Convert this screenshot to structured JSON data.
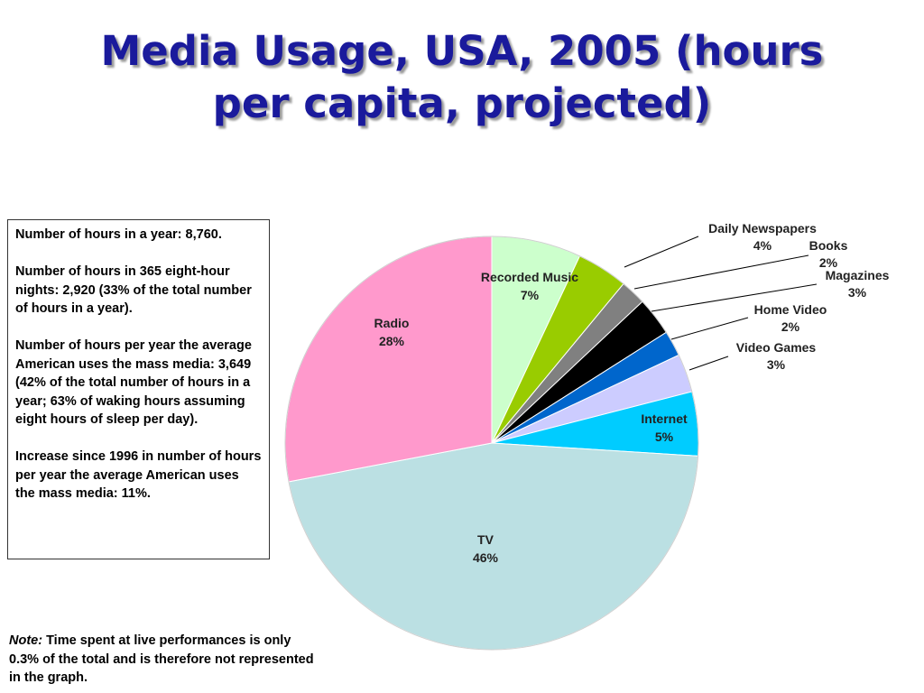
{
  "title_line1": "Media Usage, USA, 2005 (hours",
  "title_line2": "per capita, projected)",
  "info_box": {
    "p1": "Number of hours in a year: 8,760.",
    "p2": "Number of hours in 365 eight-hour nights: 2,920 (33% of the total number of hours in a year).",
    "p3": "Number of hours per year the average American uses the mass media: 3,649 (42% of the total number of hours in a year; 63% of waking hours assuming eight hours of sleep per day).",
    "p4": "Increase since 1996 in number of hours per year the average American uses the mass media: 11%."
  },
  "note": {
    "label": "Note:",
    "text": " Time spent at live performances is only 0.3% of the total and is therefore not represented in the graph."
  },
  "chart_data": {
    "type": "pie",
    "title": "Media Usage, USA, 2005 (hours per capita, projected)",
    "start": "12 o'clock",
    "direction": "clockwise",
    "slices": [
      {
        "name": "Recorded Music",
        "value": 7,
        "label": "7%",
        "color": "#ccffcc",
        "label_pos": "inside"
      },
      {
        "name": "Daily Newspapers",
        "value": 4,
        "label": "4%",
        "color": "#99cc00",
        "label_pos": "outside"
      },
      {
        "name": "Books",
        "value": 2,
        "label": "2%",
        "color": "#808080",
        "label_pos": "outside"
      },
      {
        "name": "Magazines",
        "value": 3,
        "label": "3%",
        "color": "#000000",
        "label_pos": "outside"
      },
      {
        "name": "Home Video",
        "value": 2,
        "label": "2%",
        "color": "#0066cc",
        "label_pos": "outside"
      },
      {
        "name": "Video Games",
        "value": 3,
        "label": "3%",
        "color": "#ccccff",
        "label_pos": "outside"
      },
      {
        "name": "Internet",
        "value": 5,
        "label": "5%",
        "color": "#00ccff",
        "label_pos": "inside"
      },
      {
        "name": "TV",
        "value": 46,
        "label": "46%",
        "color": "#bbe0e3",
        "label_pos": "inside"
      },
      {
        "name": "Radio",
        "value": 28,
        "label": "28%",
        "color": "#ff99cc",
        "label_pos": "inside"
      }
    ]
  }
}
